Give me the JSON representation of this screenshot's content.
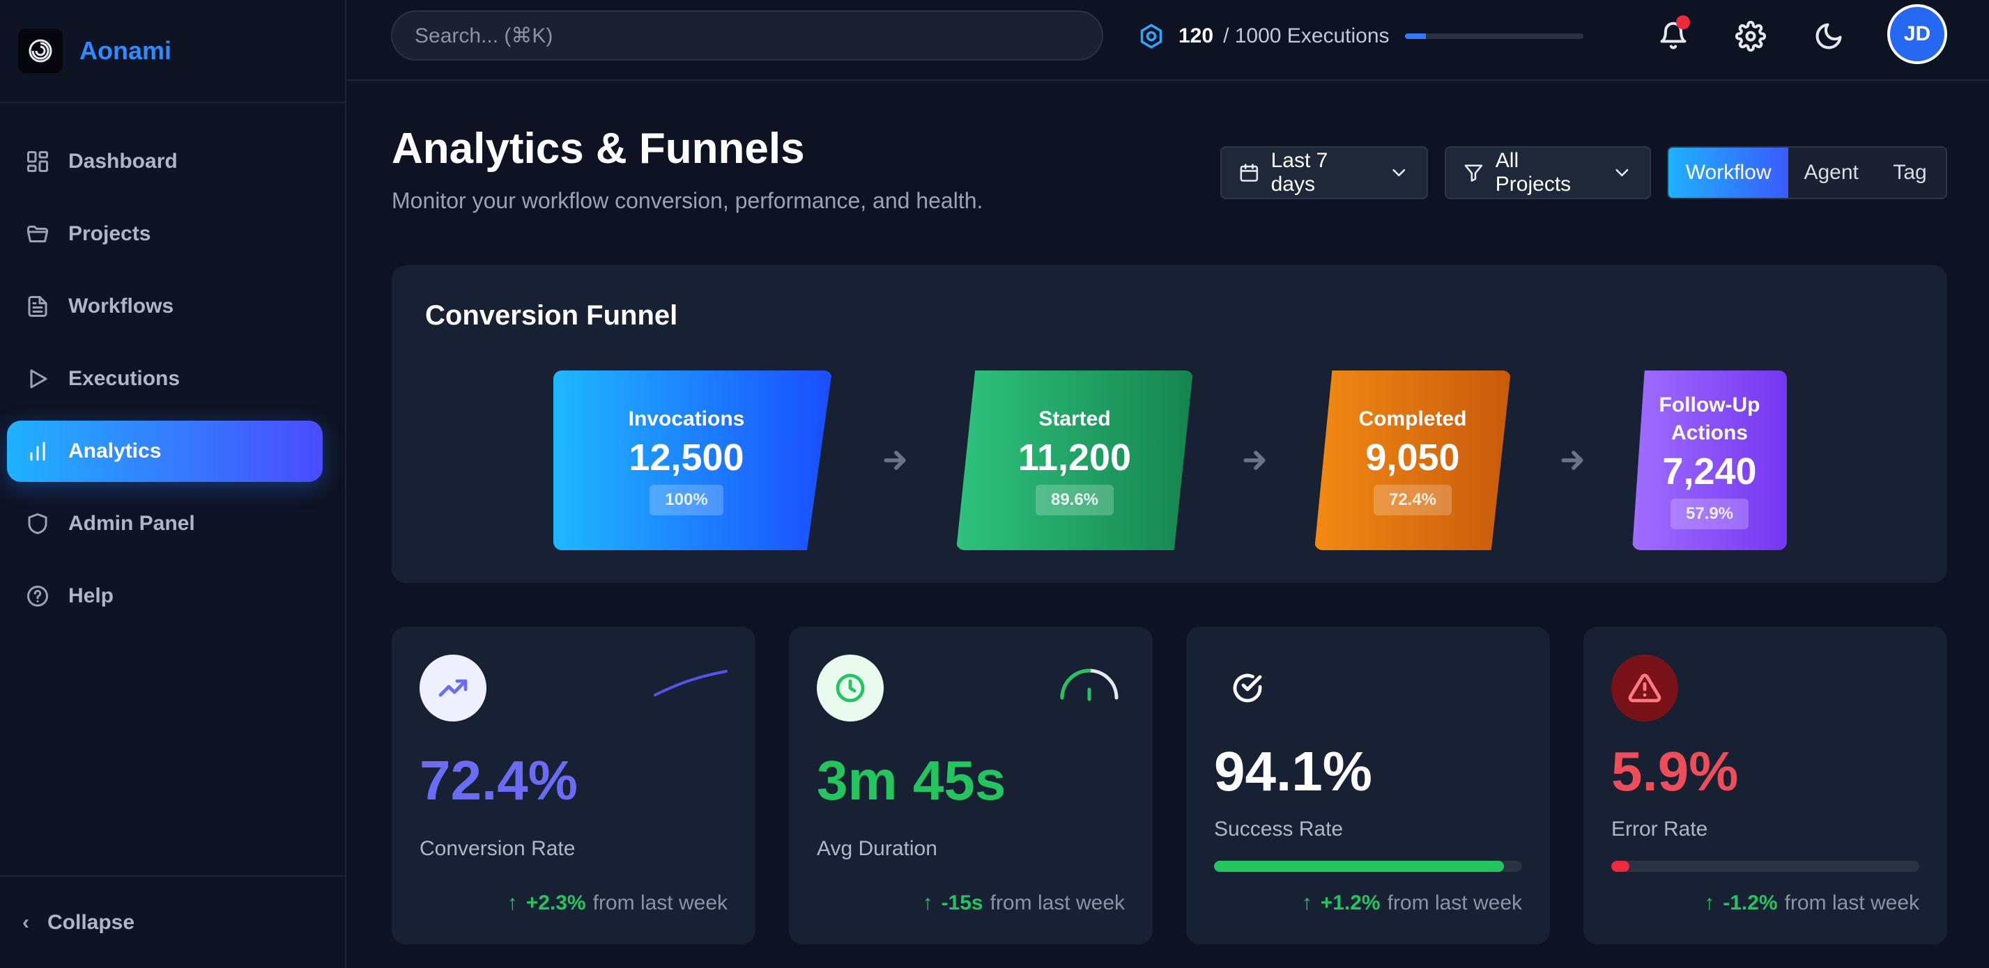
{
  "brand": {
    "name": "Aonami"
  },
  "sidebar": {
    "items": [
      {
        "label": "Dashboard",
        "icon": "dashboard-grid-icon"
      },
      {
        "label": "Projects",
        "icon": "folder-icon"
      },
      {
        "label": "Workflows",
        "icon": "document-icon"
      },
      {
        "label": "Executions",
        "icon": "play-icon"
      },
      {
        "label": "Analytics",
        "icon": "bar-chart-icon",
        "active": true
      },
      {
        "label": "Admin Panel",
        "icon": "shield-icon"
      },
      {
        "label": "Help",
        "icon": "help-circle-icon"
      }
    ],
    "collapse_label": "Collapse"
  },
  "topbar": {
    "search_placeholder": "Search... (⌘K)",
    "executions_used": "120",
    "executions_total": "/ 1000 Executions",
    "executions_fraction": 0.12,
    "avatar_initials": "JD"
  },
  "header": {
    "title": "Analytics & Funnels",
    "subtitle": "Monitor your workflow conversion, performance, and health.",
    "date_filter": "Last 7 days",
    "project_filter": "All Projects",
    "view_tabs": [
      "Workflow",
      "Agent",
      "Tag"
    ],
    "active_tab": "Workflow"
  },
  "funnel": {
    "title": "Conversion Funnel",
    "stages": [
      {
        "name": "Invocations",
        "value": "12,500",
        "percent": "100%",
        "colors": [
          "#1fb8ff",
          "#1a4dff"
        ]
      },
      {
        "name": "Started",
        "value": "11,200",
        "percent": "89.6%",
        "colors": [
          "#2ec27e",
          "#16854f"
        ]
      },
      {
        "name": "Completed",
        "value": "9,050",
        "percent": "72.4%",
        "colors": [
          "#f28a12",
          "#c85a0c"
        ]
      },
      {
        "name": "Follow-Up Actions",
        "value": "7,240",
        "percent": "57.9%",
        "colors": [
          "#a06dff",
          "#7437f0"
        ]
      }
    ]
  },
  "metrics": [
    {
      "value": "72.4%",
      "label": "Conversion Rate",
      "delta": "+2.3%",
      "since": "from last week",
      "color": "#6b6cf5",
      "icon": "trending-up-icon"
    },
    {
      "value": "3m 45s",
      "label": "Avg Duration",
      "delta": "-15s",
      "since": "from last week",
      "color": "#22c55e",
      "icon": "clock-icon"
    },
    {
      "value": "94.1%",
      "label": "Success Rate",
      "delta": "+1.2%",
      "since": "from last week",
      "color": "#ffffff",
      "icon": "check-circle-icon",
      "bar_fraction": 0.941,
      "bar_color": "#22c55e"
    },
    {
      "value": "5.9%",
      "label": "Error Rate",
      "delta": "-1.2%",
      "since": "from last week",
      "color": "#ef4e58",
      "icon": "alert-triangle-icon",
      "bar_fraction": 0.059,
      "bar_color": "#ef2b3b"
    }
  ]
}
